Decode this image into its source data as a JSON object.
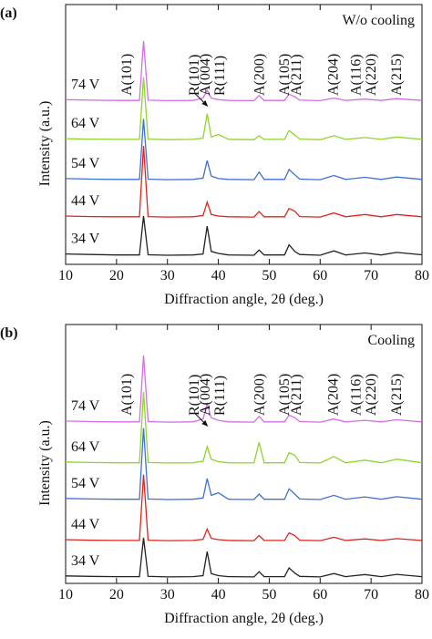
{
  "chart_data": [
    {
      "type": "line",
      "panel_label": "(a)",
      "title": "W/o cooling",
      "x_label": "Diffraction angle, 2θ (deg.)",
      "y_label": "Intensity (a.u.)",
      "xlim": [
        10,
        80
      ],
      "xticks": [
        10,
        20,
        30,
        40,
        50,
        60,
        70,
        80
      ],
      "ylim": [
        0,
        100
      ],
      "x": [
        10,
        15,
        20,
        24.5,
        25.3,
        26.2,
        30,
        35,
        37,
        37.8,
        38.6,
        40,
        42,
        47,
        48,
        49,
        53,
        53.9,
        55,
        56,
        60,
        62.7,
        65,
        68.8,
        72,
        75,
        80
      ],
      "series": [
        {
          "name": "34 V",
          "color": "#222222",
          "values": [
            4,
            3.8,
            3.6,
            3.6,
            18.6,
            3.7,
            3.5,
            3.6,
            4,
            14.7,
            5,
            4.2,
            3.6,
            3.5,
            5.5,
            3.6,
            3.6,
            7.5,
            5,
            3.8,
            3.5,
            5.2,
            3.6,
            4.4,
            3.6,
            4.6,
            3.7
          ]
        },
        {
          "name": "44 V",
          "color": "#e0241c",
          "values": [
            18.6,
            18.4,
            18.3,
            18.3,
            45.6,
            18.4,
            18.2,
            18.3,
            18.8,
            24,
            19.2,
            18.6,
            18.3,
            18.2,
            20.3,
            18.3,
            18.3,
            21.5,
            20.5,
            18.4,
            18.2,
            19.8,
            18.3,
            19.2,
            18.3,
            19.2,
            18.3
          ]
        },
        {
          "name": "54 V",
          "color": "#3f6fd8",
          "values": [
            33,
            32.8,
            32.7,
            32.7,
            56,
            32.8,
            32.6,
            32.7,
            33.2,
            40,
            34,
            33,
            32.7,
            32.6,
            35.5,
            32.7,
            32.7,
            36.5,
            34.5,
            32.8,
            32.6,
            34.2,
            32.7,
            33.5,
            32.7,
            33.6,
            32.7
          ]
        },
        {
          "name": "64 V",
          "color": "#8ed62a",
          "values": [
            48.4,
            48.2,
            48.1,
            48.1,
            72,
            48.2,
            48,
            48.1,
            48.6,
            58,
            49,
            50,
            48.1,
            48,
            49.5,
            48.1,
            48.1,
            51.5,
            49.8,
            48.2,
            48,
            49.5,
            48.1,
            48.8,
            48.1,
            49,
            48.1
          ]
        },
        {
          "name": "74 V",
          "color": "#d46ee6",
          "values": [
            63.4,
            63.2,
            63.1,
            63.1,
            86,
            63.2,
            63,
            63.1,
            64,
            67,
            64,
            63.4,
            63.1,
            63,
            65,
            63.1,
            63.1,
            65.5,
            64.5,
            63.2,
            63,
            64,
            63.1,
            63.6,
            63.1,
            63.8,
            63.1
          ]
        }
      ],
      "annotations": [
        {
          "text": "A(101)",
          "x": 22
        },
        {
          "text": "R(101)",
          "x": 35.2
        },
        {
          "text": "A(004)",
          "x": 37.4
        },
        {
          "text": "R(111)",
          "x": 40.3
        },
        {
          "text": "A(200)",
          "x": 48
        },
        {
          "text": "A(105)",
          "x": 53
        },
        {
          "text": "A(211)",
          "x": 55.3
        },
        {
          "text": "A(204)",
          "x": 62.5
        },
        {
          "text": "A(116)",
          "x": 67
        },
        {
          "text": "A(220)",
          "x": 70
        },
        {
          "text": "A(215)",
          "x": 75
        }
      ]
    },
    {
      "type": "line",
      "panel_label": "(b)",
      "title": "Cooling",
      "x_label": "Diffraction angle, 2θ (deg.)",
      "y_label": "Intensity (a.u.)",
      "xlim": [
        10,
        80
      ],
      "xticks": [
        10,
        20,
        30,
        40,
        50,
        60,
        70,
        80
      ],
      "ylim": [
        0,
        100
      ],
      "x": [
        10,
        15,
        20,
        24.5,
        25.3,
        26.2,
        30,
        35,
        37,
        37.8,
        38.6,
        40,
        42,
        47,
        48,
        49,
        53,
        53.9,
        55,
        56,
        60,
        62.7,
        65,
        68.8,
        72,
        75,
        80
      ],
      "series": [
        {
          "name": "34 V",
          "color": "#222222",
          "values": [
            2.9,
            2.7,
            2.6,
            2.6,
            17.6,
            2.7,
            2.5,
            2.6,
            3,
            12.3,
            3.8,
            3,
            2.6,
            2.5,
            4.5,
            2.6,
            2.6,
            6,
            4,
            2.7,
            2.5,
            3.8,
            2.6,
            3.4,
            2.6,
            3.5,
            2.6
          ]
        },
        {
          "name": "44 V",
          "color": "#e0241c",
          "values": [
            16.9,
            16.7,
            16.6,
            16.6,
            42,
            16.7,
            16.5,
            16.6,
            17,
            21,
            17.4,
            16.9,
            16.6,
            16.5,
            18.5,
            16.6,
            16.6,
            19.5,
            18.5,
            16.7,
            16.5,
            17.8,
            16.6,
            17.2,
            16.6,
            17.3,
            16.6
          ]
        },
        {
          "name": "54 V",
          "color": "#3f6fd8",
          "values": [
            32.8,
            32.6,
            32.5,
            32.5,
            60,
            32.6,
            32.4,
            32.5,
            33,
            40.5,
            34,
            35,
            32.5,
            32.4,
            34.5,
            32.5,
            32.5,
            36.5,
            34.5,
            32.6,
            32.4,
            34,
            32.5,
            33.4,
            32.5,
            33.5,
            32.5
          ]
        },
        {
          "name": "64 V",
          "color": "#8ed62a",
          "values": [
            46.9,
            46.7,
            46.6,
            46.6,
            74,
            46.7,
            46.5,
            46.6,
            47.2,
            52.8,
            48,
            47,
            46.6,
            46.5,
            54.5,
            46.6,
            46.6,
            50.5,
            49.5,
            46.7,
            46.5,
            49,
            46.6,
            47.6,
            46.6,
            48,
            46.6
          ]
        },
        {
          "name": "74 V",
          "color": "#d46ee6",
          "values": [
            62.7,
            62.5,
            62.4,
            62.4,
            88,
            62.5,
            62.3,
            62.4,
            63.5,
            69.4,
            64,
            63,
            62.4,
            62.3,
            64.5,
            62.4,
            62.4,
            65,
            64,
            62.5,
            62.3,
            63.5,
            62.4,
            63,
            62.4,
            63.2,
            62.4
          ]
        }
      ],
      "annotations": [
        {
          "text": "A(101)",
          "x": 22
        },
        {
          "text": "R(101)",
          "x": 35.2
        },
        {
          "text": "A(004)",
          "x": 37.4
        },
        {
          "text": "R(111)",
          "x": 40.3
        },
        {
          "text": "A(200)",
          "x": 48
        },
        {
          "text": "A(105)",
          "x": 53
        },
        {
          "text": "A(211)",
          "x": 55.3
        },
        {
          "text": "A(204)",
          "x": 62.5
        },
        {
          "text": "A(116)",
          "x": 67
        },
        {
          "text": "A(220)",
          "x": 70
        },
        {
          "text": "A(215)",
          "x": 75
        }
      ]
    }
  ]
}
